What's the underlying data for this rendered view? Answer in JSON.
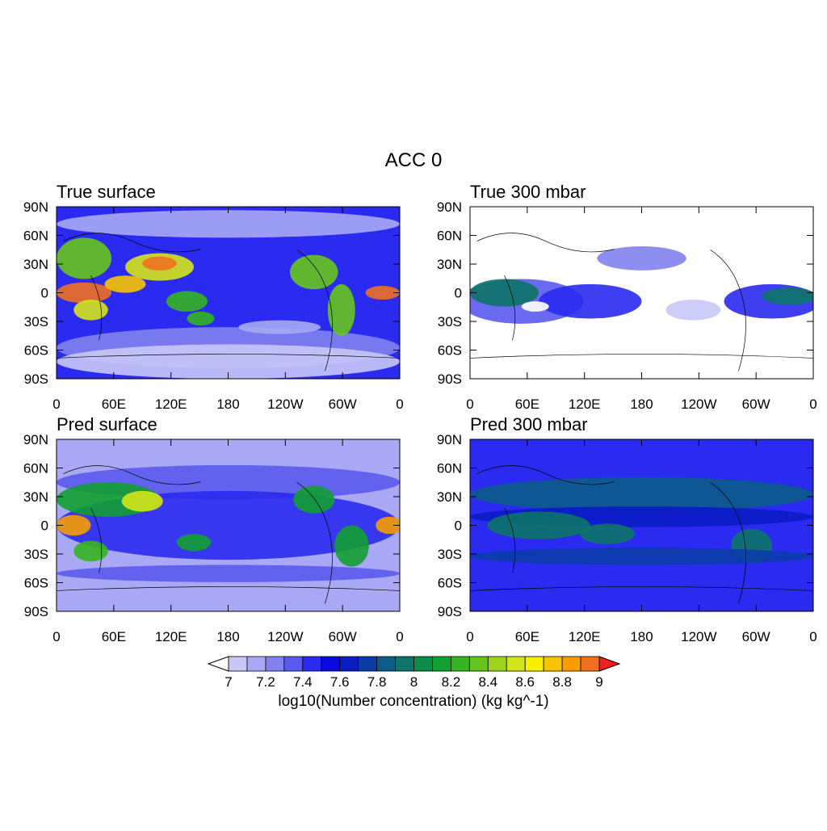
{
  "title": "ACC  0",
  "lat_labels": [
    "90N",
    "60N",
    "30N",
    "0",
    "30S",
    "60S",
    "90S"
  ],
  "lon_labels": [
    "0",
    "60E",
    "120E",
    "180",
    "120W",
    "60W",
    "0"
  ],
  "panels": [
    {
      "title": "True surface"
    },
    {
      "title": "True 300 mbar"
    },
    {
      "title": "Pred surface"
    },
    {
      "title": "Pred 300 mbar"
    }
  ],
  "colorbar": {
    "ticks": [
      7,
      7.2,
      7.4,
      7.6,
      7.8,
      8,
      8.2,
      8.4,
      8.6,
      8.8,
      9
    ],
    "colors": [
      "#c8c8f8",
      "#a8a8f4",
      "#8282ee",
      "#5a5aee",
      "#2a2af0",
      "#0a0ae0",
      "#0a1cc4",
      "#0a3ca8",
      "#0c5c8a",
      "#0c7468",
      "#0c8c48",
      "#12a030",
      "#34b420",
      "#66c41c",
      "#9ed41c",
      "#d4e41a",
      "#f8f000",
      "#f8c400",
      "#f89c00",
      "#f07020"
    ],
    "under_color": "#ffffff",
    "over_color": "#f02020",
    "label": "log10(Number concentration) (kg kg^-1)"
  }
}
